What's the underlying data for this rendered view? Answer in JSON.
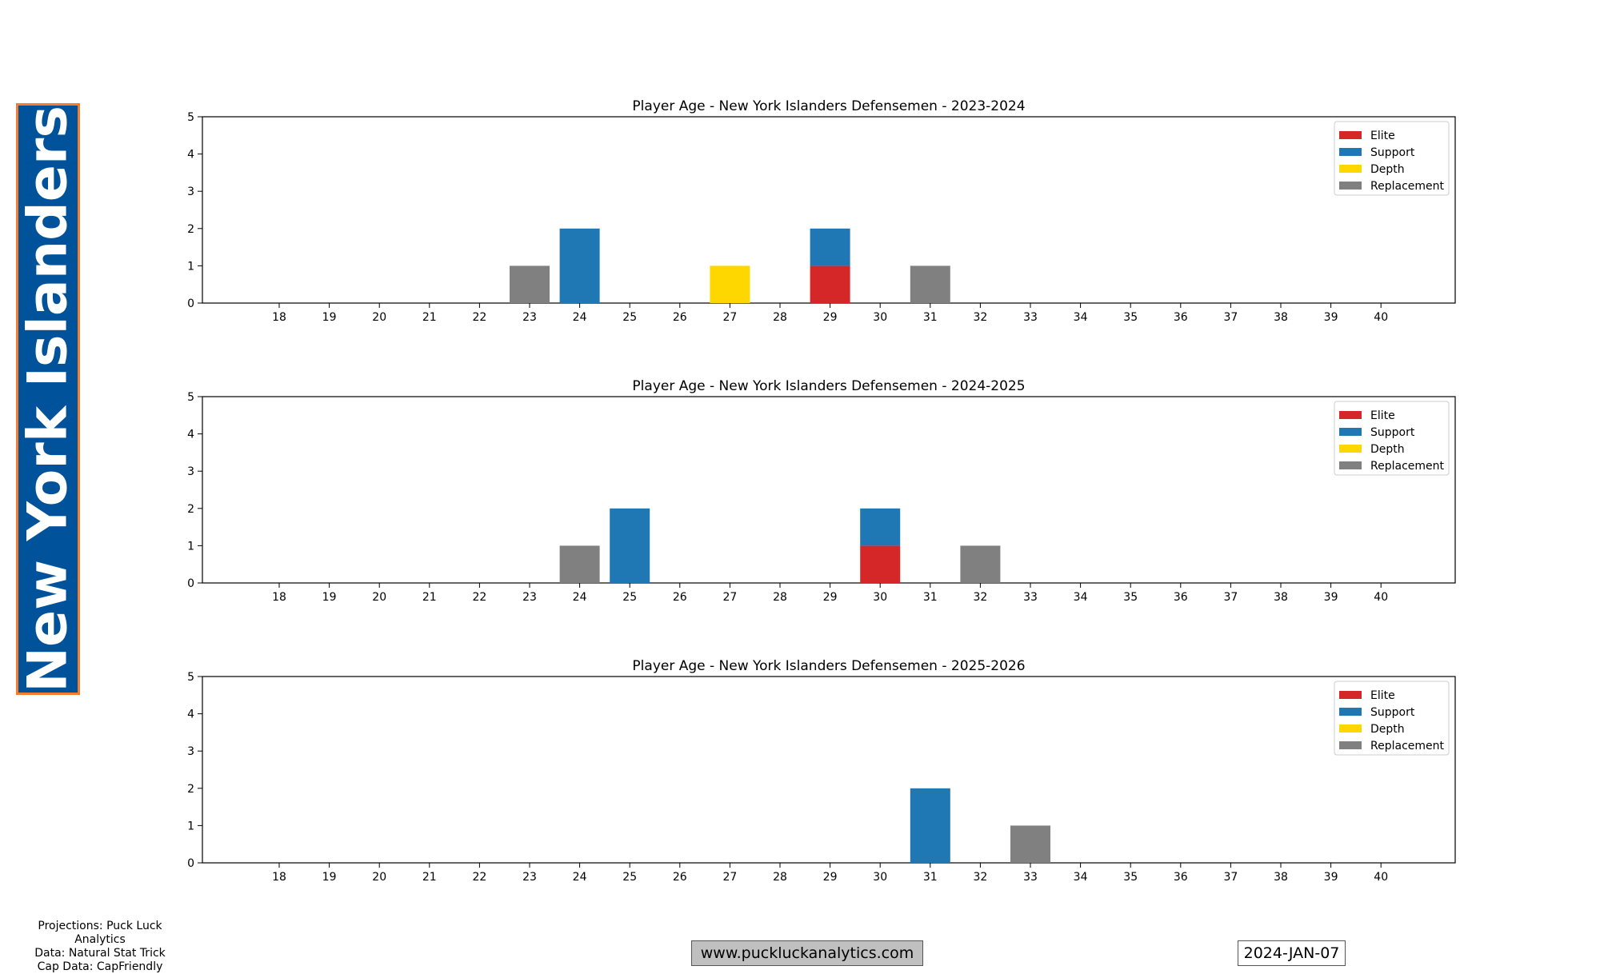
{
  "team": {
    "name": "New York Islanders"
  },
  "colors": {
    "banner_bg": "#00529B",
    "banner_border": "#F47D30",
    "Elite": "#D62728",
    "Support": "#1F77B4",
    "Depth": "#FFD700",
    "Replacement": "#808080"
  },
  "footer": {
    "credits": [
      "Projections: Puck Luck Analytics",
      "Data: Natural Stat Trick",
      "Cap Data: CapFriendly"
    ],
    "website": "www.puckluckanalytics.com",
    "date": "2024-JAN-07"
  },
  "chart_data": [
    {
      "type": "bar",
      "stacked": true,
      "title": "Player Age - New York Islanders Defensemen - 2023-2024",
      "categories": [
        18,
        19,
        20,
        21,
        22,
        23,
        24,
        25,
        26,
        27,
        28,
        29,
        30,
        31,
        32,
        33,
        34,
        35,
        36,
        37,
        38,
        39,
        40
      ],
      "ylim": [
        0,
        5
      ],
      "yticks": [
        0,
        1,
        2,
        3,
        4,
        5
      ],
      "legend": [
        "Elite",
        "Support",
        "Depth",
        "Replacement"
      ],
      "legend_position": "top-right",
      "series": [
        {
          "name": "Elite",
          "values": [
            0,
            0,
            0,
            0,
            0,
            0,
            0,
            0,
            0,
            0,
            0,
            1,
            0,
            0,
            0,
            0,
            0,
            0,
            0,
            0,
            0,
            0,
            0
          ]
        },
        {
          "name": "Support",
          "values": [
            0,
            0,
            0,
            0,
            0,
            0,
            2,
            0,
            0,
            0,
            0,
            1,
            0,
            0,
            0,
            0,
            0,
            0,
            0,
            0,
            0,
            0,
            0
          ]
        },
        {
          "name": "Depth",
          "values": [
            0,
            0,
            0,
            0,
            0,
            0,
            0,
            0,
            0,
            1,
            0,
            0,
            0,
            0,
            0,
            0,
            0,
            0,
            0,
            0,
            0,
            0,
            0
          ]
        },
        {
          "name": "Replacement",
          "values": [
            0,
            0,
            0,
            0,
            0,
            1,
            0,
            0,
            0,
            0,
            0,
            0,
            0,
            1,
            0,
            0,
            0,
            0,
            0,
            0,
            0,
            0,
            0
          ]
        }
      ]
    },
    {
      "type": "bar",
      "stacked": true,
      "title": "Player Age - New York Islanders Defensemen - 2024-2025",
      "categories": [
        18,
        19,
        20,
        21,
        22,
        23,
        24,
        25,
        26,
        27,
        28,
        29,
        30,
        31,
        32,
        33,
        34,
        35,
        36,
        37,
        38,
        39,
        40
      ],
      "ylim": [
        0,
        5
      ],
      "yticks": [
        0,
        1,
        2,
        3,
        4,
        5
      ],
      "legend": [
        "Elite",
        "Support",
        "Depth",
        "Replacement"
      ],
      "legend_position": "top-right",
      "series": [
        {
          "name": "Elite",
          "values": [
            0,
            0,
            0,
            0,
            0,
            0,
            0,
            0,
            0,
            0,
            0,
            0,
            1,
            0,
            0,
            0,
            0,
            0,
            0,
            0,
            0,
            0,
            0
          ]
        },
        {
          "name": "Support",
          "values": [
            0,
            0,
            0,
            0,
            0,
            0,
            0,
            2,
            0,
            0,
            0,
            0,
            1,
            0,
            0,
            0,
            0,
            0,
            0,
            0,
            0,
            0,
            0
          ]
        },
        {
          "name": "Depth",
          "values": [
            0,
            0,
            0,
            0,
            0,
            0,
            0,
            0,
            0,
            0,
            0,
            0,
            0,
            0,
            0,
            0,
            0,
            0,
            0,
            0,
            0,
            0,
            0
          ]
        },
        {
          "name": "Replacement",
          "values": [
            0,
            0,
            0,
            0,
            0,
            0,
            1,
            0,
            0,
            0,
            0,
            0,
            0,
            0,
            1,
            0,
            0,
            0,
            0,
            0,
            0,
            0,
            0
          ]
        }
      ]
    },
    {
      "type": "bar",
      "stacked": true,
      "title": "Player Age - New York Islanders Defensemen - 2025-2026",
      "categories": [
        18,
        19,
        20,
        21,
        22,
        23,
        24,
        25,
        26,
        27,
        28,
        29,
        30,
        31,
        32,
        33,
        34,
        35,
        36,
        37,
        38,
        39,
        40
      ],
      "ylim": [
        0,
        5
      ],
      "yticks": [
        0,
        1,
        2,
        3,
        4,
        5
      ],
      "legend": [
        "Elite",
        "Support",
        "Depth",
        "Replacement"
      ],
      "legend_position": "top-right",
      "series": [
        {
          "name": "Elite",
          "values": [
            0,
            0,
            0,
            0,
            0,
            0,
            0,
            0,
            0,
            0,
            0,
            0,
            0,
            0,
            0,
            0,
            0,
            0,
            0,
            0,
            0,
            0,
            0
          ]
        },
        {
          "name": "Support",
          "values": [
            0,
            0,
            0,
            0,
            0,
            0,
            0,
            0,
            0,
            0,
            0,
            0,
            0,
            2,
            0,
            0,
            0,
            0,
            0,
            0,
            0,
            0,
            0
          ]
        },
        {
          "name": "Depth",
          "values": [
            0,
            0,
            0,
            0,
            0,
            0,
            0,
            0,
            0,
            0,
            0,
            0,
            0,
            0,
            0,
            0,
            0,
            0,
            0,
            0,
            0,
            0,
            0
          ]
        },
        {
          "name": "Replacement",
          "values": [
            0,
            0,
            0,
            0,
            0,
            0,
            0,
            0,
            0,
            0,
            0,
            0,
            0,
            0,
            0,
            1,
            0,
            0,
            0,
            0,
            0,
            0,
            0
          ]
        }
      ]
    }
  ]
}
